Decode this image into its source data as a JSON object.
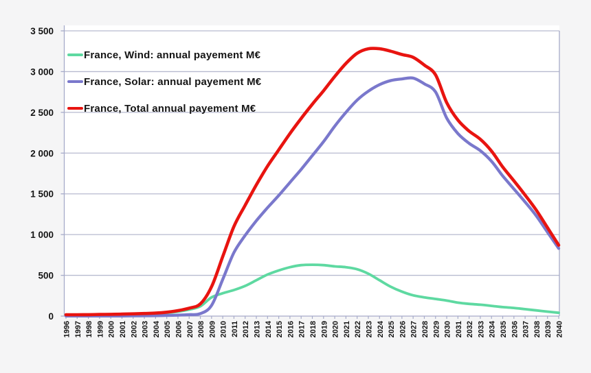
{
  "page": {
    "background": "#f5f5f6",
    "plot_background": "#ffffff"
  },
  "chart_data": {
    "type": "line",
    "title": "",
    "xlabel": "",
    "ylabel": "",
    "unit": "M€",
    "x": [
      1996,
      1997,
      1998,
      1999,
      2000,
      2001,
      2002,
      2003,
      2004,
      2005,
      2006,
      2007,
      2008,
      2009,
      2010,
      2011,
      2012,
      2013,
      2014,
      2015,
      2016,
      2017,
      2018,
      2019,
      2020,
      2021,
      2022,
      2023,
      2024,
      2025,
      2026,
      2027,
      2028,
      2029,
      2030,
      2031,
      2032,
      2033,
      2034,
      2035,
      2036,
      2037,
      2038,
      2039,
      2040
    ],
    "series": [
      {
        "name": "France, Wind: annual payement M€",
        "color": "#5ed9a1",
        "values": [
          15,
          15,
          16,
          18,
          20,
          22,
          25,
          28,
          32,
          40,
          55,
          80,
          120,
          230,
          280,
          320,
          370,
          440,
          510,
          560,
          600,
          625,
          630,
          625,
          610,
          600,
          575,
          520,
          440,
          360,
          300,
          255,
          230,
          210,
          190,
          165,
          150,
          140,
          125,
          110,
          100,
          85,
          70,
          55,
          40
        ]
      },
      {
        "name": "France, Solar: annual payement M€",
        "color": "#7a78cc",
        "values": [
          2,
          2,
          2,
          2,
          2,
          2,
          3,
          4,
          5,
          8,
          12,
          18,
          30,
          130,
          450,
          780,
          990,
          1170,
          1330,
          1480,
          1640,
          1800,
          1970,
          2140,
          2330,
          2500,
          2650,
          2760,
          2840,
          2890,
          2910,
          2920,
          2850,
          2750,
          2430,
          2240,
          2120,
          2030,
          1900,
          1720,
          1560,
          1400,
          1230,
          1030,
          830
        ]
      },
      {
        "name": "France, Total annual payement M€",
        "color": "#e81410",
        "values": [
          17,
          17,
          18,
          20,
          22,
          24,
          28,
          32,
          37,
          48,
          67,
          98,
          150,
          360,
          730,
          1100,
          1360,
          1610,
          1840,
          2040,
          2240,
          2425,
          2600,
          2765,
          2940,
          3100,
          3225,
          3280,
          3280,
          3250,
          3210,
          3175,
          3080,
          2960,
          2620,
          2405,
          2270,
          2170,
          2025,
          1830,
          1660,
          1485,
          1300,
          1085,
          870
        ]
      }
    ],
    "ylim": [
      0,
      3500
    ],
    "ytick_step": 500,
    "ytick_labels": [
      "0",
      "500",
      "1 000",
      "1 500",
      "2 000",
      "2 500",
      "3 000",
      "3 500"
    ],
    "grid": true,
    "grid_color": "#b7bacf",
    "axis_color": "#a6abc9",
    "legend_position": "top-left"
  }
}
